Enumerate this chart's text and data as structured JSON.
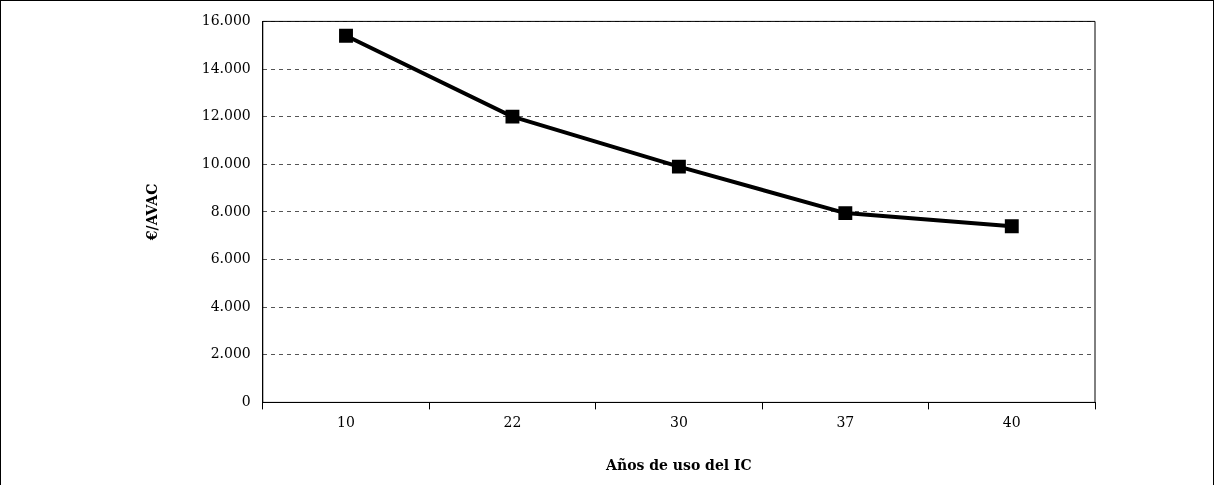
{
  "chart_data": {
    "type": "line",
    "xlabel": "Años de uso del IC",
    "ylabel": "€/AVAC",
    "categories": [
      "10",
      "22",
      "30",
      "37",
      "40"
    ],
    "series": [
      {
        "color": "#000000",
        "values": [
          15400,
          12000,
          9900,
          7950,
          7400
        ]
      }
    ],
    "ylim": [
      0,
      16000
    ],
    "yticks": [
      0,
      {
        "value": 2000,
        "label": "2.000"
      },
      {
        "value": 4000,
        "label": "4.000"
      },
      {
        "value": 6000,
        "label": "6.000"
      },
      {
        "value": 8000,
        "label": "8.000"
      },
      {
        "value": 10000,
        "label": "10.000"
      },
      {
        "value": 12000,
        "label": "12.000"
      },
      {
        "value": 14000,
        "label": "14.000"
      },
      {
        "value": 16000,
        "label": "16.000"
      }
    ],
    "grid": "y",
    "legend": false,
    "marker": "square",
    "line_style": "solid"
  }
}
